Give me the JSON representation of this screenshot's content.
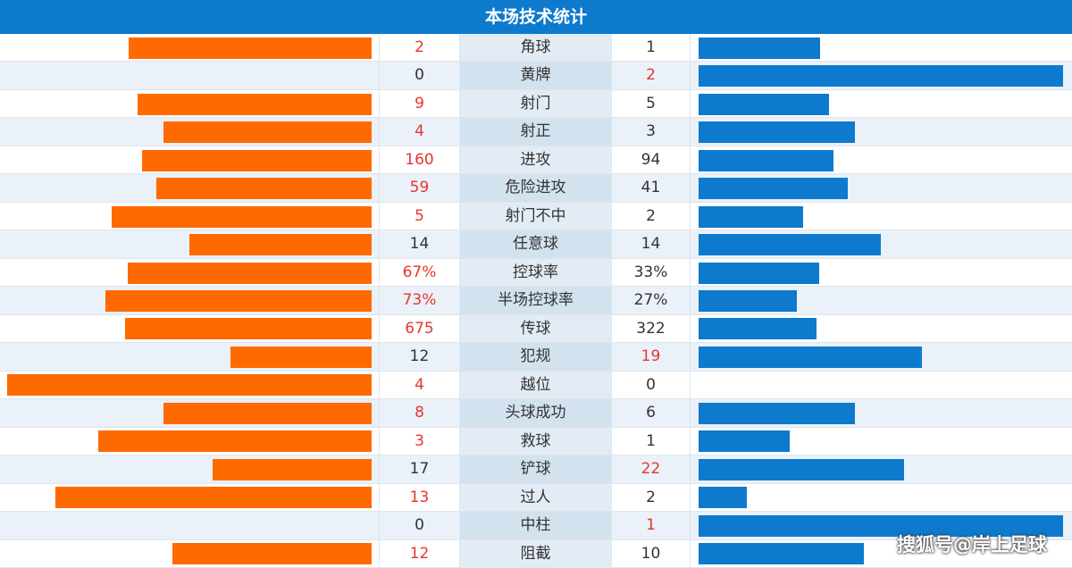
{
  "header": {
    "title": "本场技术统计"
  },
  "rows": [
    {
      "label": "角球",
      "home": 2,
      "away": 1
    },
    {
      "label": "黄牌",
      "home": 0,
      "away": 2
    },
    {
      "label": "射门",
      "home": 9,
      "away": 5
    },
    {
      "label": "射正",
      "home": 4,
      "away": 3
    },
    {
      "label": "进攻",
      "home": 160,
      "away": 94
    },
    {
      "label": "危险进攻",
      "home": 59,
      "away": 41
    },
    {
      "label": "射门不中",
      "home": 5,
      "away": 2
    },
    {
      "label": "任意球",
      "home": 14,
      "away": 14
    },
    {
      "label": "控球率",
      "home": 67,
      "away": 33,
      "home_label": "67%",
      "away_label": "33%"
    },
    {
      "label": "半场控球率",
      "home": 73,
      "away": 27,
      "home_label": "73%",
      "away_label": "27%"
    },
    {
      "label": "传球",
      "home": 675,
      "away": 322
    },
    {
      "label": "犯规",
      "home": 12,
      "away": 19
    },
    {
      "label": "越位",
      "home": 4,
      "away": 0
    },
    {
      "label": "头球成功",
      "home": 8,
      "away": 6
    },
    {
      "label": "救球",
      "home": 3,
      "away": 1
    },
    {
      "label": "铲球",
      "home": 17,
      "away": 22
    },
    {
      "label": "过人",
      "home": 13,
      "away": 2
    },
    {
      "label": "中柱",
      "home": 0,
      "away": 1
    },
    {
      "label": "阻截",
      "home": 12,
      "away": 10
    }
  ],
  "watermark": "搜狐号@岸上足球"
}
